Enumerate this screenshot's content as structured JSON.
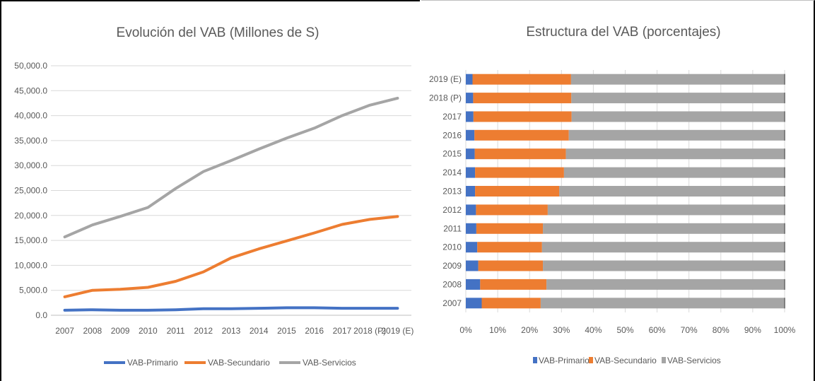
{
  "chart_data": [
    {
      "type": "line",
      "title": "Evolución del VAB  (Millones de S)",
      "x": [
        "2007",
        "2008",
        "2009",
        "2010",
        "2011",
        "2012",
        "2013",
        "2014",
        "2015",
        "2016",
        "2017",
        "2018 (P)",
        "2019 (E)"
      ],
      "yticks": [
        "0.0",
        "5,000.0",
        "10,000.0",
        "15,000.0",
        "20,000.0",
        "25,000.0",
        "30,000.0",
        "35,000.0",
        "40,000.0",
        "45,000.0",
        "50,000.0"
      ],
      "ylim": [
        0,
        50000
      ],
      "grid": true,
      "legend_position": "bottom",
      "series": [
        {
          "name": "VAB-Primario",
          "color": "#4472c4",
          "values": [
            1000,
            1100,
            1000,
            1000,
            1100,
            1300,
            1300,
            1400,
            1500,
            1500,
            1400,
            1400,
            1400
          ]
        },
        {
          "name": "VAB-Secundario",
          "color": "#ed7d31",
          "values": [
            3700,
            5000,
            5200,
            5600,
            6800,
            8700,
            11500,
            13300,
            14900,
            16500,
            18200,
            19200,
            19800
          ]
        },
        {
          "name": "VAB-Servicios",
          "color": "#a5a5a5",
          "values": [
            15700,
            18100,
            19800,
            21600,
            25400,
            28800,
            31000,
            33300,
            35500,
            37500,
            40000,
            42100,
            43500
          ]
        }
      ]
    },
    {
      "type": "bar",
      "orientation": "horizontal",
      "stacked": "percent",
      "title": "Estructura del VAB (porcentajes)",
      "categories": [
        "2007",
        "2008",
        "2009",
        "2010",
        "2011",
        "2012",
        "2013",
        "2014",
        "2015",
        "2016",
        "2017",
        "2018 (P)",
        "2019 (E)"
      ],
      "xticks": [
        "0%",
        "10%",
        "20%",
        "30%",
        "40%",
        "50%",
        "60%",
        "70%",
        "80%",
        "90%",
        "100%"
      ],
      "xlim": [
        0,
        100
      ],
      "grid": true,
      "legend_position": "bottom",
      "series": [
        {
          "name": "VAB-Primario",
          "color": "#4472c4",
          "values": [
            5.0,
            4.5,
            3.9,
            3.6,
            3.3,
            3.2,
            2.9,
            2.9,
            2.8,
            2.7,
            2.4,
            2.3,
            2.1
          ]
        },
        {
          "name": "VAB-Secundario",
          "color": "#ed7d31",
          "values": [
            18.5,
            20.8,
            20.3,
            20.3,
            20.9,
            22.5,
            26.4,
            27.9,
            28.6,
            29.6,
            30.8,
            30.8,
            30.9
          ]
        },
        {
          "name": "VAB-Servicios",
          "color": "#a5a5a5",
          "values": [
            76.5,
            74.7,
            75.8,
            76.1,
            75.8,
            74.3,
            70.7,
            69.2,
            68.6,
            67.7,
            66.8,
            66.9,
            67.0
          ]
        }
      ]
    }
  ]
}
